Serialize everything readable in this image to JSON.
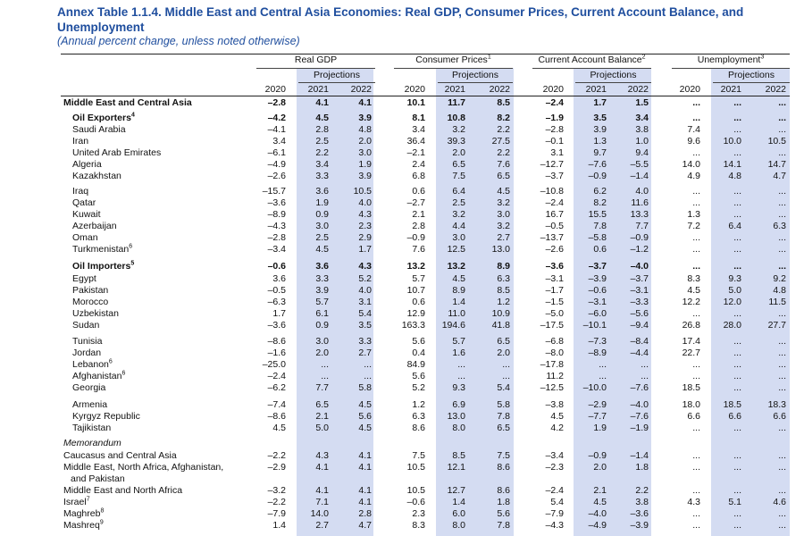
{
  "title": "Annex Table 1.1.4. Middle East and Central Asia Economies: Real GDP, Consumer Prices, Current Account Balance, and Unemployment",
  "subtitle": "(Annual percent change, unless noted otherwise)",
  "groups": [
    {
      "label": "Real GDP",
      "sup": ""
    },
    {
      "label": "Consumer Prices",
      "sup": "1"
    },
    {
      "label": "Current Account Balance",
      "sup": "2"
    },
    {
      "label": "Unemployment",
      "sup": "3"
    }
  ],
  "projections_label": "Projections",
  "years": [
    "2020",
    "2021",
    "2022"
  ],
  "memorandum_label": "Memorandum",
  "rows": [
    {
      "name": "Middle East and Central Asia",
      "sup": "",
      "bold": true,
      "values": [
        "–2.8",
        "4.1",
        "4.1",
        "10.1",
        "11.7",
        "8.5",
        "–2.4",
        "1.7",
        "1.5",
        "...",
        "...",
        "..."
      ]
    },
    {
      "name": "Oil Exporters",
      "sup": "4",
      "bold": true,
      "values": [
        "–4.2",
        "4.5",
        "3.9",
        "8.1",
        "10.8",
        "8.2",
        "–1.9",
        "3.5",
        "3.4",
        "...",
        "...",
        "..."
      ]
    },
    {
      "name": "Saudi Arabia",
      "sup": "",
      "values": [
        "–4.1",
        "2.8",
        "4.8",
        "3.4",
        "3.2",
        "2.2",
        "–2.8",
        "3.9",
        "3.8",
        "7.4",
        "...",
        "..."
      ]
    },
    {
      "name": "Iran",
      "sup": "",
      "values": [
        "3.4",
        "2.5",
        "2.0",
        "36.4",
        "39.3",
        "27.5",
        "–0.1",
        "1.3",
        "1.0",
        "9.6",
        "10.0",
        "10.5"
      ]
    },
    {
      "name": "United Arab Emirates",
      "sup": "",
      "values": [
        "–6.1",
        "2.2",
        "3.0",
        "–2.1",
        "2.0",
        "2.2",
        "3.1",
        "9.7",
        "9.4",
        "...",
        "...",
        "..."
      ]
    },
    {
      "name": "Algeria",
      "sup": "",
      "values": [
        "–4.9",
        "3.4",
        "1.9",
        "2.4",
        "6.5",
        "7.6",
        "–12.7",
        "–7.6",
        "–5.5",
        "14.0",
        "14.1",
        "14.7"
      ]
    },
    {
      "name": "Kazakhstan",
      "sup": "",
      "values": [
        "–2.6",
        "3.3",
        "3.9",
        "6.8",
        "7.5",
        "6.5",
        "–3.7",
        "–0.9",
        "–1.4",
        "4.9",
        "4.8",
        "4.7"
      ]
    },
    {
      "name": "Iraq",
      "sup": "",
      "values": [
        "–15.7",
        "3.6",
        "10.5",
        "0.6",
        "6.4",
        "4.5",
        "–10.8",
        "6.2",
        "4.0",
        "...",
        "...",
        "..."
      ]
    },
    {
      "name": "Qatar",
      "sup": "",
      "values": [
        "–3.6",
        "1.9",
        "4.0",
        "–2.7",
        "2.5",
        "3.2",
        "–2.4",
        "8.2",
        "11.6",
        "...",
        "...",
        "..."
      ]
    },
    {
      "name": "Kuwait",
      "sup": "",
      "values": [
        "–8.9",
        "0.9",
        "4.3",
        "2.1",
        "3.2",
        "3.0",
        "16.7",
        "15.5",
        "13.3",
        "1.3",
        "...",
        "..."
      ]
    },
    {
      "name": "Azerbaijan",
      "sup": "",
      "values": [
        "–4.3",
        "3.0",
        "2.3",
        "2.8",
        "4.4",
        "3.2",
        "–0.5",
        "7.8",
        "7.7",
        "7.2",
        "6.4",
        "6.3"
      ]
    },
    {
      "name": "Oman",
      "sup": "",
      "values": [
        "–2.8",
        "2.5",
        "2.9",
        "–0.9",
        "3.0",
        "2.7",
        "–13.7",
        "–5.8",
        "–0.9",
        "...",
        "...",
        "..."
      ]
    },
    {
      "name": "Turkmenistan",
      "sup": "6",
      "values": [
        "–3.4",
        "4.5",
        "1.7",
        "7.6",
        "12.5",
        "13.0",
        "–2.6",
        "0.6",
        "–1.2",
        "...",
        "...",
        "..."
      ]
    },
    {
      "name": "Oil Importers",
      "sup": "5",
      "bold": true,
      "values": [
        "–0.6",
        "3.6",
        "4.3",
        "13.2",
        "13.2",
        "8.9",
        "–3.6",
        "–3.7",
        "–4.0",
        "...",
        "...",
        "..."
      ]
    },
    {
      "name": "Egypt",
      "sup": "",
      "values": [
        "3.6",
        "3.3",
        "5.2",
        "5.7",
        "4.5",
        "6.3",
        "–3.1",
        "–3.9",
        "–3.7",
        "8.3",
        "9.3",
        "9.2"
      ]
    },
    {
      "name": "Pakistan",
      "sup": "",
      "values": [
        "–0.5",
        "3.9",
        "4.0",
        "10.7",
        "8.9",
        "8.5",
        "–1.7",
        "–0.6",
        "–3.1",
        "4.5",
        "5.0",
        "4.8"
      ]
    },
    {
      "name": "Morocco",
      "sup": "",
      "values": [
        "–6.3",
        "5.7",
        "3.1",
        "0.6",
        "1.4",
        "1.2",
        "–1.5",
        "–3.1",
        "–3.3",
        "12.2",
        "12.0",
        "11.5"
      ]
    },
    {
      "name": "Uzbekistan",
      "sup": "",
      "values": [
        "1.7",
        "6.1",
        "5.4",
        "12.9",
        "11.0",
        "10.9",
        "–5.0",
        "–6.0",
        "–5.6",
        "...",
        "...",
        "..."
      ]
    },
    {
      "name": "Sudan",
      "sup": "",
      "values": [
        "–3.6",
        "0.9",
        "3.5",
        "163.3",
        "194.6",
        "41.8",
        "–17.5",
        "–10.1",
        "–9.4",
        "26.8",
        "28.0",
        "27.7"
      ]
    },
    {
      "name": "Tunisia",
      "sup": "",
      "values": [
        "–8.6",
        "3.0",
        "3.3",
        "5.6",
        "5.7",
        "6.5",
        "–6.8",
        "–7.3",
        "–8.4",
        "17.4",
        "...",
        "..."
      ]
    },
    {
      "name": "Jordan",
      "sup": "",
      "values": [
        "–1.6",
        "2.0",
        "2.7",
        "0.4",
        "1.6",
        "2.0",
        "–8.0",
        "–8.9",
        "–4.4",
        "22.7",
        "...",
        "..."
      ]
    },
    {
      "name": "Lebanon",
      "sup": "6",
      "values": [
        "–25.0",
        "...",
        "...",
        "84.9",
        "...",
        "...",
        "–17.8",
        "...",
        "...",
        "...",
        "...",
        "..."
      ]
    },
    {
      "name": "Afghanistan",
      "sup": "6",
      "values": [
        "–2.4",
        "...",
        "...",
        "5.6",
        "...",
        "...",
        "11.2",
        "...",
        "...",
        "...",
        "...",
        "..."
      ]
    },
    {
      "name": "Georgia",
      "sup": "",
      "values": [
        "–6.2",
        "7.7",
        "5.8",
        "5.2",
        "9.3",
        "5.4",
        "–12.5",
        "–10.0",
        "–7.6",
        "18.5",
        "...",
        "..."
      ]
    },
    {
      "name": "Armenia",
      "sup": "",
      "values": [
        "–7.4",
        "6.5",
        "4.5",
        "1.2",
        "6.9",
        "5.8",
        "–3.8",
        "–2.9",
        "–4.0",
        "18.0",
        "18.5",
        "18.3"
      ]
    },
    {
      "name": "Kyrgyz Republic",
      "sup": "",
      "values": [
        "–8.6",
        "2.1",
        "5.6",
        "6.3",
        "13.0",
        "7.8",
        "4.5",
        "–7.7",
        "–7.6",
        "6.6",
        "6.6",
        "6.6"
      ]
    },
    {
      "name": "Tajikistan",
      "sup": "",
      "values": [
        "4.5",
        "5.0",
        "4.5",
        "8.6",
        "8.0",
        "6.5",
        "4.2",
        "1.9",
        "–1.9",
        "...",
        "...",
        "..."
      ]
    },
    {
      "name": "Caucasus and Central Asia",
      "sup": "",
      "values": [
        "–2.2",
        "4.3",
        "4.1",
        "7.5",
        "8.5",
        "7.5",
        "–3.4",
        "–0.9",
        "–1.4",
        "...",
        "...",
        "..."
      ]
    },
    {
      "name": "Middle East, North Africa, Afghanistan,",
      "name2": "and Pakistan",
      "sup": "",
      "values": [
        "–2.9",
        "4.1",
        "4.1",
        "10.5",
        "12.1",
        "8.6",
        "–2.3",
        "2.0",
        "1.8",
        "...",
        "...",
        "..."
      ]
    },
    {
      "name": "Middle East and North Africa",
      "sup": "",
      "values": [
        "–3.2",
        "4.1",
        "4.1",
        "10.5",
        "12.7",
        "8.6",
        "–2.4",
        "2.1",
        "2.2",
        "...",
        "...",
        "..."
      ]
    },
    {
      "name": "Israel",
      "sup": "7",
      "values": [
        "–2.2",
        "7.1",
        "4.1",
        "–0.6",
        "1.4",
        "1.8",
        "5.4",
        "4.5",
        "3.8",
        "4.3",
        "5.1",
        "4.6"
      ]
    },
    {
      "name": "Maghreb",
      "sup": "8",
      "values": [
        "–7.9",
        "14.0",
        "2.8",
        "2.3",
        "6.0",
        "5.6",
        "–7.9",
        "–4.0",
        "–3.6",
        "...",
        "...",
        "..."
      ]
    },
    {
      "name": "Mashreq",
      "sup": "9",
      "values": [
        "1.4",
        "2.7",
        "4.7",
        "8.3",
        "8.0",
        "7.8",
        "–4.3",
        "–4.9",
        "–3.9",
        "...",
        "...",
        "..."
      ]
    }
  ]
}
